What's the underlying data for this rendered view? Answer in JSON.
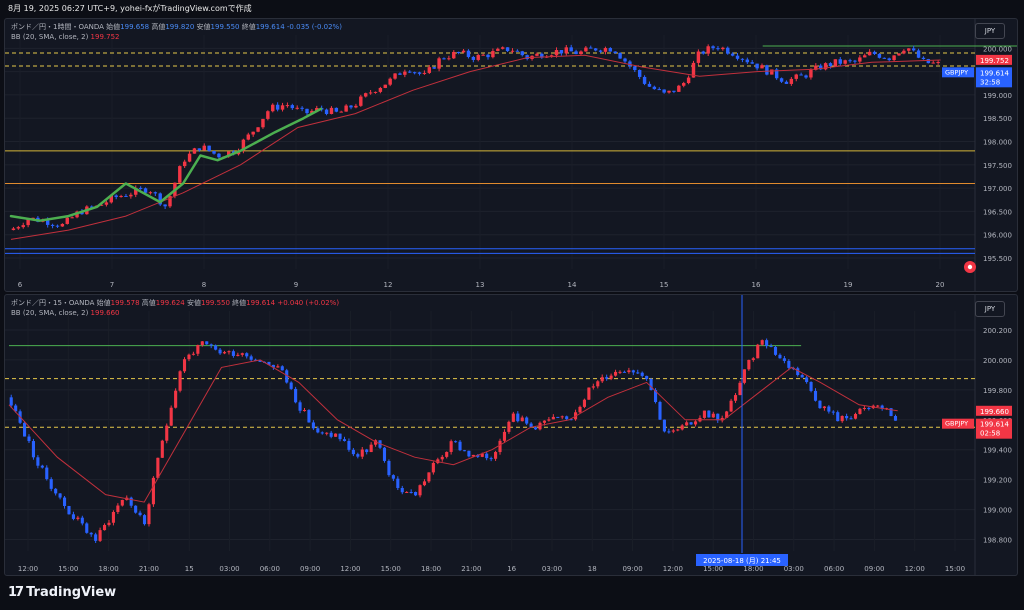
{
  "header": {
    "text": "8月 19, 2025 06:27 UTC+9,  yohei-fxがTradingView.comで作成"
  },
  "footer": {
    "logo": "TradingView",
    "logo_icon": "tradingview-logo-icon"
  },
  "colors": {
    "up": "#f23645",
    "down": "#2962ff",
    "bb_mid": "#f23645",
    "hand_green": "#4caf50",
    "yellow": "#d4b63a",
    "orange": "#e08b2e",
    "blue": "#2962ff"
  },
  "chart_data": [
    {
      "type": "candlestick",
      "currency_button": "JPY",
      "legend": {
        "title": "ポンド／円・1時間・OANDA",
        "o_label": "始値",
        "o": "199.658",
        "h_label": "高値",
        "h": "199.820",
        "l_label": "安値",
        "l": "199.550",
        "c_label": "終値",
        "c": "199.614",
        "change": "-0.035 (-0.02%)",
        "bb_label": "BB (20, SMA, close, 2)",
        "bb_value": "199.752"
      },
      "y_ticks": [
        "200.000",
        "199.500",
        "199.000",
        "198.500",
        "198.000",
        "197.500",
        "197.000",
        "196.500",
        "196.000",
        "195.500"
      ],
      "ylim": [
        195.35,
        200.2
      ],
      "x_ticks": [
        "6",
        "7",
        "8",
        "9",
        "12",
        "13",
        "14",
        "15",
        "16",
        "19",
        "20"
      ],
      "price_labels": {
        "bb": "199.752",
        "symbol": "GBPJPY",
        "last": "199.614",
        "countdown": "32:58"
      },
      "horizontal_levels": [
        {
          "price": 199.9,
          "color": "#e6c84a",
          "style": "dashed"
        },
        {
          "price": 199.62,
          "color": "#e6c84a",
          "style": "dashed"
        },
        {
          "price": 197.8,
          "color": "#d4b63a",
          "style": "solid"
        },
        {
          "price": 197.1,
          "color": "#e08b2e",
          "style": "solid"
        },
        {
          "price": 195.7,
          "color": "#2962ff",
          "style": "solid"
        },
        {
          "price": 195.6,
          "color": "#2962ff",
          "style": "solid"
        }
      ],
      "resistance_segment": {
        "price": 200.05,
        "x_start": 13.1,
        "x_end": 17.9,
        "color": "#4caf50"
      },
      "close_path": [
        [
          0,
          196.1
        ],
        [
          0.3,
          196.35
        ],
        [
          0.6,
          196.3
        ],
        [
          0.9,
          196.2
        ],
        [
          1.2,
          196.5
        ],
        [
          1.5,
          196.6
        ],
        [
          1.8,
          196.8
        ],
        [
          2.1,
          196.9
        ],
        [
          2.4,
          197.0
        ],
        [
          2.7,
          196.6
        ],
        [
          3.0,
          197.6
        ],
        [
          3.3,
          197.9
        ],
        [
          3.6,
          197.7
        ],
        [
          3.9,
          197.8
        ],
        [
          4.2,
          198.2
        ],
        [
          4.5,
          198.7
        ],
        [
          4.8,
          198.8
        ],
        [
          5.1,
          198.6
        ],
        [
          5.4,
          198.7
        ],
        [
          5.7,
          198.6
        ],
        [
          6.0,
          198.8
        ],
        [
          6.3,
          199.1
        ],
        [
          6.6,
          199.3
        ],
        [
          6.9,
          199.6
        ],
        [
          7.2,
          199.4
        ],
        [
          7.5,
          199.8
        ],
        [
          7.8,
          199.9
        ],
        [
          8.1,
          199.8
        ],
        [
          8.4,
          199.9
        ],
        [
          8.7,
          200.0
        ],
        [
          9.0,
          199.8
        ],
        [
          9.3,
          199.9
        ],
        [
          9.6,
          199.95
        ],
        [
          9.9,
          199.9
        ],
        [
          10.2,
          200.0
        ],
        [
          10.5,
          200.0
        ],
        [
          10.8,
          199.6
        ],
        [
          11.1,
          199.2
        ],
        [
          11.4,
          199.0
        ],
        [
          11.7,
          199.2
        ],
        [
          12.0,
          199.9
        ],
        [
          12.3,
          200.05
        ],
        [
          12.6,
          199.9
        ],
        [
          12.9,
          199.7
        ],
        [
          13.2,
          199.5
        ],
        [
          13.5,
          199.3
        ],
        [
          13.8,
          199.4
        ],
        [
          14.1,
          199.6
        ],
        [
          14.4,
          199.7
        ],
        [
          14.7,
          199.7
        ],
        [
          15.0,
          199.9
        ],
        [
          15.3,
          199.8
        ],
        [
          15.6,
          200.05
        ],
        [
          15.9,
          199.7
        ],
        [
          16.2,
          199.65
        ]
      ],
      "bb_mid_path": [
        [
          0,
          195.9
        ],
        [
          1,
          196.1
        ],
        [
          2,
          196.4
        ],
        [
          3,
          196.9
        ],
        [
          4,
          197.5
        ],
        [
          5,
          198.3
        ],
        [
          6,
          198.6
        ],
        [
          7,
          199.1
        ],
        [
          8,
          199.5
        ],
        [
          9,
          199.8
        ],
        [
          10,
          199.85
        ],
        [
          11,
          199.6
        ],
        [
          12,
          199.4
        ],
        [
          13,
          199.5
        ],
        [
          14,
          199.55
        ],
        [
          15,
          199.7
        ],
        [
          16.2,
          199.75
        ]
      ],
      "hand_drawn_path": [
        [
          0,
          196.4
        ],
        [
          0.5,
          196.3
        ],
        [
          1,
          196.4
        ],
        [
          1.5,
          196.6
        ],
        [
          2,
          197.1
        ],
        [
          2.3,
          196.9
        ],
        [
          2.6,
          196.7
        ],
        [
          3,
          197.1
        ],
        [
          3.3,
          197.7
        ],
        [
          3.6,
          197.6
        ],
        [
          4,
          197.8
        ],
        [
          4.6,
          198.2
        ],
        [
          5.1,
          198.5
        ],
        [
          5.4,
          198.7
        ]
      ]
    },
    {
      "type": "candlestick",
      "currency_button": "JPY",
      "legend": {
        "title": "ポンド／円・15・OANDA",
        "o_label": "始値",
        "o": "199.578",
        "h_label": "高値",
        "h": "199.624",
        "l_label": "安値",
        "l": "199.550",
        "c_label": "終値",
        "c": "199.614",
        "change": "+0.040 (+0.02%)",
        "bb_label": "BB (20, SMA, close, 2)",
        "bb_value": "199.660"
      },
      "y_ticks": [
        "200.200",
        "200.000",
        "199.800",
        "199.600",
        "199.400",
        "199.200",
        "199.000",
        "198.800"
      ],
      "ylim": [
        198.75,
        200.3
      ],
      "x_ticks": [
        "12:00",
        "15:00",
        "18:00",
        "21:00",
        "15",
        "03:00",
        "06:00",
        "09:00",
        "12:00",
        "15:00",
        "18:00",
        "21:00",
        "16",
        "03:00",
        "18",
        "09:00",
        "12:00",
        "15:00",
        "18:00",
        "03:00",
        "06:00",
        "09:00",
        "12:00",
        "15:00"
      ],
      "crosshair_label": "2025-08-18 (月)   21:45",
      "price_labels": {
        "bb": "199.660",
        "symbol": "GBPJPY",
        "last": "199.614",
        "countdown": "02:58"
      },
      "horizontal_levels": [
        {
          "price": 199.875,
          "color": "#e6c84a",
          "style": "dashed"
        },
        {
          "price": 199.55,
          "color": "#e6c84a",
          "style": "dashed"
        }
      ],
      "resistance_segment": {
        "price": 200.095,
        "x_start": 0,
        "x_end": 0.82,
        "color": "#4caf50"
      },
      "close_path": [
        [
          0,
          199.75
        ],
        [
          0.03,
          199.3
        ],
        [
          0.06,
          199.0
        ],
        [
          0.09,
          198.8
        ],
        [
          0.12,
          199.1
        ],
        [
          0.14,
          198.9
        ],
        [
          0.16,
          199.5
        ],
        [
          0.18,
          200.0
        ],
        [
          0.2,
          200.1
        ],
        [
          0.22,
          200.05
        ],
        [
          0.24,
          200.05
        ],
        [
          0.26,
          200.0
        ],
        [
          0.28,
          199.95
        ],
        [
          0.3,
          199.7
        ],
        [
          0.32,
          199.5
        ],
        [
          0.34,
          199.5
        ],
        [
          0.36,
          199.35
        ],
        [
          0.38,
          199.45
        ],
        [
          0.4,
          199.15
        ],
        [
          0.42,
          199.1
        ],
        [
          0.44,
          199.3
        ],
        [
          0.46,
          199.45
        ],
        [
          0.48,
          199.35
        ],
        [
          0.5,
          199.35
        ],
        [
          0.52,
          199.65
        ],
        [
          0.54,
          199.55
        ],
        [
          0.56,
          199.6
        ],
        [
          0.58,
          199.6
        ],
        [
          0.6,
          199.8
        ],
        [
          0.62,
          199.9
        ],
        [
          0.64,
          199.95
        ],
        [
          0.66,
          199.9
        ],
        [
          0.68,
          199.5
        ],
        [
          0.7,
          199.55
        ],
        [
          0.72,
          199.65
        ],
        [
          0.74,
          199.6
        ],
        [
          0.76,
          199.9
        ],
        [
          0.78,
          200.15
        ],
        [
          0.8,
          200.0
        ],
        [
          0.82,
          199.9
        ],
        [
          0.84,
          199.7
        ],
        [
          0.86,
          199.6
        ],
        [
          0.88,
          199.65
        ],
        [
          0.9,
          199.7
        ],
        [
          0.92,
          199.6
        ]
      ],
      "bb_mid_path": [
        [
          0,
          199.7
        ],
        [
          0.05,
          199.35
        ],
        [
          0.1,
          199.1
        ],
        [
          0.14,
          199.05
        ],
        [
          0.18,
          199.5
        ],
        [
          0.22,
          199.95
        ],
        [
          0.26,
          200.0
        ],
        [
          0.3,
          199.85
        ],
        [
          0.34,
          199.6
        ],
        [
          0.38,
          199.45
        ],
        [
          0.42,
          199.35
        ],
        [
          0.46,
          199.3
        ],
        [
          0.5,
          199.4
        ],
        [
          0.54,
          199.55
        ],
        [
          0.58,
          199.6
        ],
        [
          0.62,
          199.75
        ],
        [
          0.66,
          199.85
        ],
        [
          0.7,
          199.6
        ],
        [
          0.74,
          199.6
        ],
        [
          0.78,
          199.8
        ],
        [
          0.81,
          199.95
        ],
        [
          0.84,
          199.85
        ],
        [
          0.88,
          199.7
        ],
        [
          0.92,
          199.66
        ]
      ]
    }
  ]
}
